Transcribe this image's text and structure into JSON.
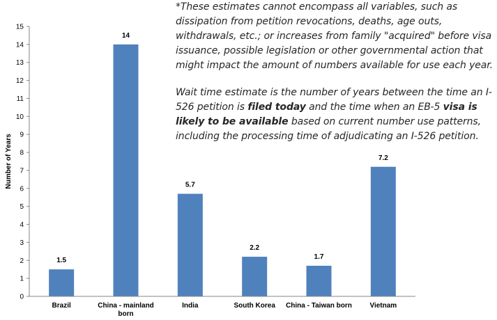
{
  "chart_data": {
    "type": "bar",
    "ylabel": "Number of Years",
    "xlabel": "",
    "ylim": [
      0,
      15
    ],
    "yticks": [
      0,
      1,
      2,
      3,
      4,
      5,
      6,
      7,
      8,
      9,
      10,
      11,
      12,
      13,
      14,
      15
    ],
    "grid": false,
    "categories": [
      [
        "Brazil"
      ],
      [
        "China - mainland",
        "born"
      ],
      [
        "India"
      ],
      [
        "South Korea"
      ],
      [
        "China - Taiwan born"
      ],
      [
        "Vietnam"
      ]
    ],
    "values": [
      1.5,
      14,
      5.7,
      2.2,
      1.7,
      7.2
    ],
    "value_labels": [
      "1.5",
      "14",
      "5.7",
      "2.2",
      "1.7",
      "7.2"
    ],
    "bar_color": "#4f81bd",
    "axis_color": "#868686",
    "label_color": "#000000"
  },
  "notes": {
    "first": "*These estimates cannot encompass all variables, such as dissipation from petition revocations, deaths, age outs, withdrawals, etc.; or increases from family \"acquired\" before visa issuance, possible legislation or other governmental action that might impact the amount of numbers available  for use each year.",
    "second_a": "Wait time estimate is the number of years between the time an I-526 petition is ",
    "second_b": "filed today",
    "second_c": " and the time when an EB-5 ",
    "second_d": "visa is likely to be available",
    "second_e": " based on current number use patterns, including the processing time of adjudicating an I-526 petition."
  }
}
